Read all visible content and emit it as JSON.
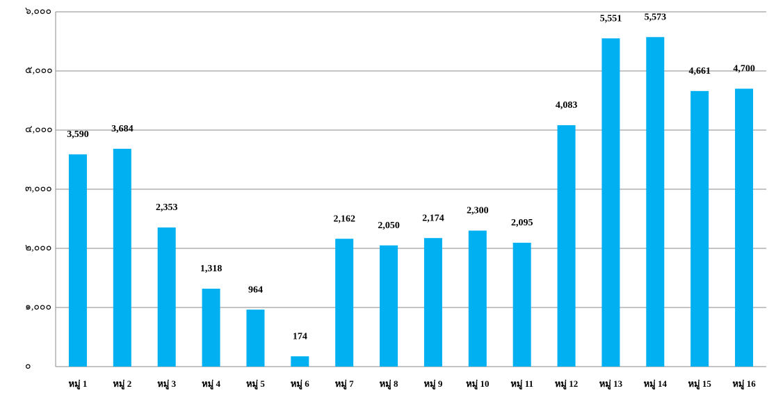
{
  "chart_data": {
    "type": "bar",
    "categories": [
      "หมู่ 1",
      "หมู่ 2",
      "หมู่ 3",
      "หมู่ 4",
      "หมู่ 5",
      "หมู่ 6",
      "หมู่ 7",
      "หมู่ 8",
      "หมู่ 9",
      "หมู่ 10",
      "หมู่ 11",
      "หมู่ 12",
      "หมู่ 13",
      "หมู่ 14",
      "หมู่ 15",
      "หมู่ 16"
    ],
    "values": [
      3590,
      3684,
      2353,
      1318,
      964,
      174,
      2162,
      2050,
      2174,
      2300,
      2095,
      4083,
      5551,
      5573,
      4661,
      4700
    ],
    "value_labels": [
      "3,590",
      "3,684",
      "2,353",
      "1,318",
      "964",
      "174",
      "2,162",
      "2,050",
      "2,174",
      "2,300",
      "2,095",
      "4,083",
      "5,551",
      "5,573",
      "4,661",
      "4,700"
    ],
    "color": "#00b0f0",
    "ylim": [
      0,
      6000
    ],
    "yticks": [
      {
        "value": 0,
        "label": "๐"
      },
      {
        "value": 1000,
        "label": "๑,๐๐๐"
      },
      {
        "value": 2000,
        "label": "๒,๐๐๐"
      },
      {
        "value": 3000,
        "label": "๓,๐๐๐"
      },
      {
        "value": 4000,
        "label": "๔,๐๐๐"
      },
      {
        "value": 5000,
        "label": "๕,๐๐๐"
      },
      {
        "value": 6000,
        "label": "๖,๐๐๐"
      }
    ],
    "grid": true
  }
}
